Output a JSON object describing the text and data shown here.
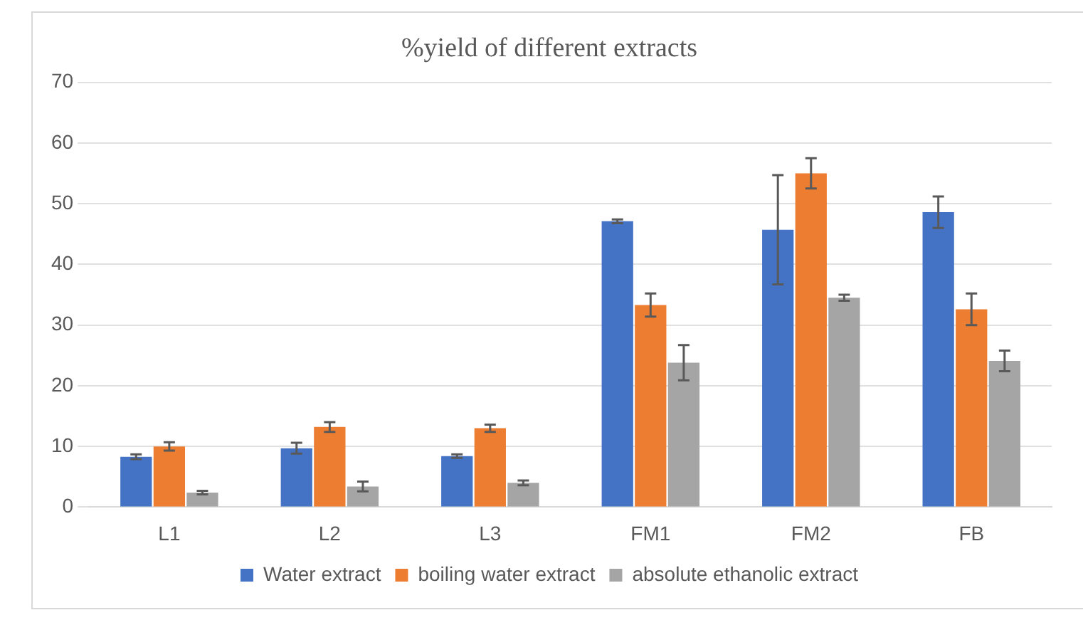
{
  "chart_data": {
    "type": "bar",
    "title": "%yield of different extracts",
    "categories": [
      "L1",
      "L2",
      "L3",
      "FM1",
      "FM2",
      "FB"
    ],
    "series": [
      {
        "name": "Water extract",
        "color": "#4472c4",
        "values": [
          8.3,
          9.7,
          8.4,
          47.1,
          45.7,
          48.6
        ],
        "errors": [
          0.4,
          0.9,
          0.3,
          0.3,
          9,
          2.6
        ]
      },
      {
        "name": "boiling water extract",
        "color": "#ed7d31",
        "values": [
          10,
          13.2,
          13,
          33.3,
          55,
          32.6
        ],
        "errors": [
          0.7,
          0.8,
          0.6,
          1.9,
          2.5,
          2.6
        ]
      },
      {
        "name": "absolute ethanolic extract",
        "color": "#a5a5a5",
        "values": [
          2.4,
          3.4,
          4,
          23.8,
          34.5,
          24.1
        ],
        "errors": [
          0.3,
          0.8,
          0.4,
          2.9,
          0.5,
          1.7
        ]
      }
    ],
    "ylim": [
      0,
      70
    ],
    "yticks": [
      0,
      10,
      20,
      30,
      40,
      50,
      60,
      70
    ],
    "grid": "y",
    "legend": "bottom"
  }
}
